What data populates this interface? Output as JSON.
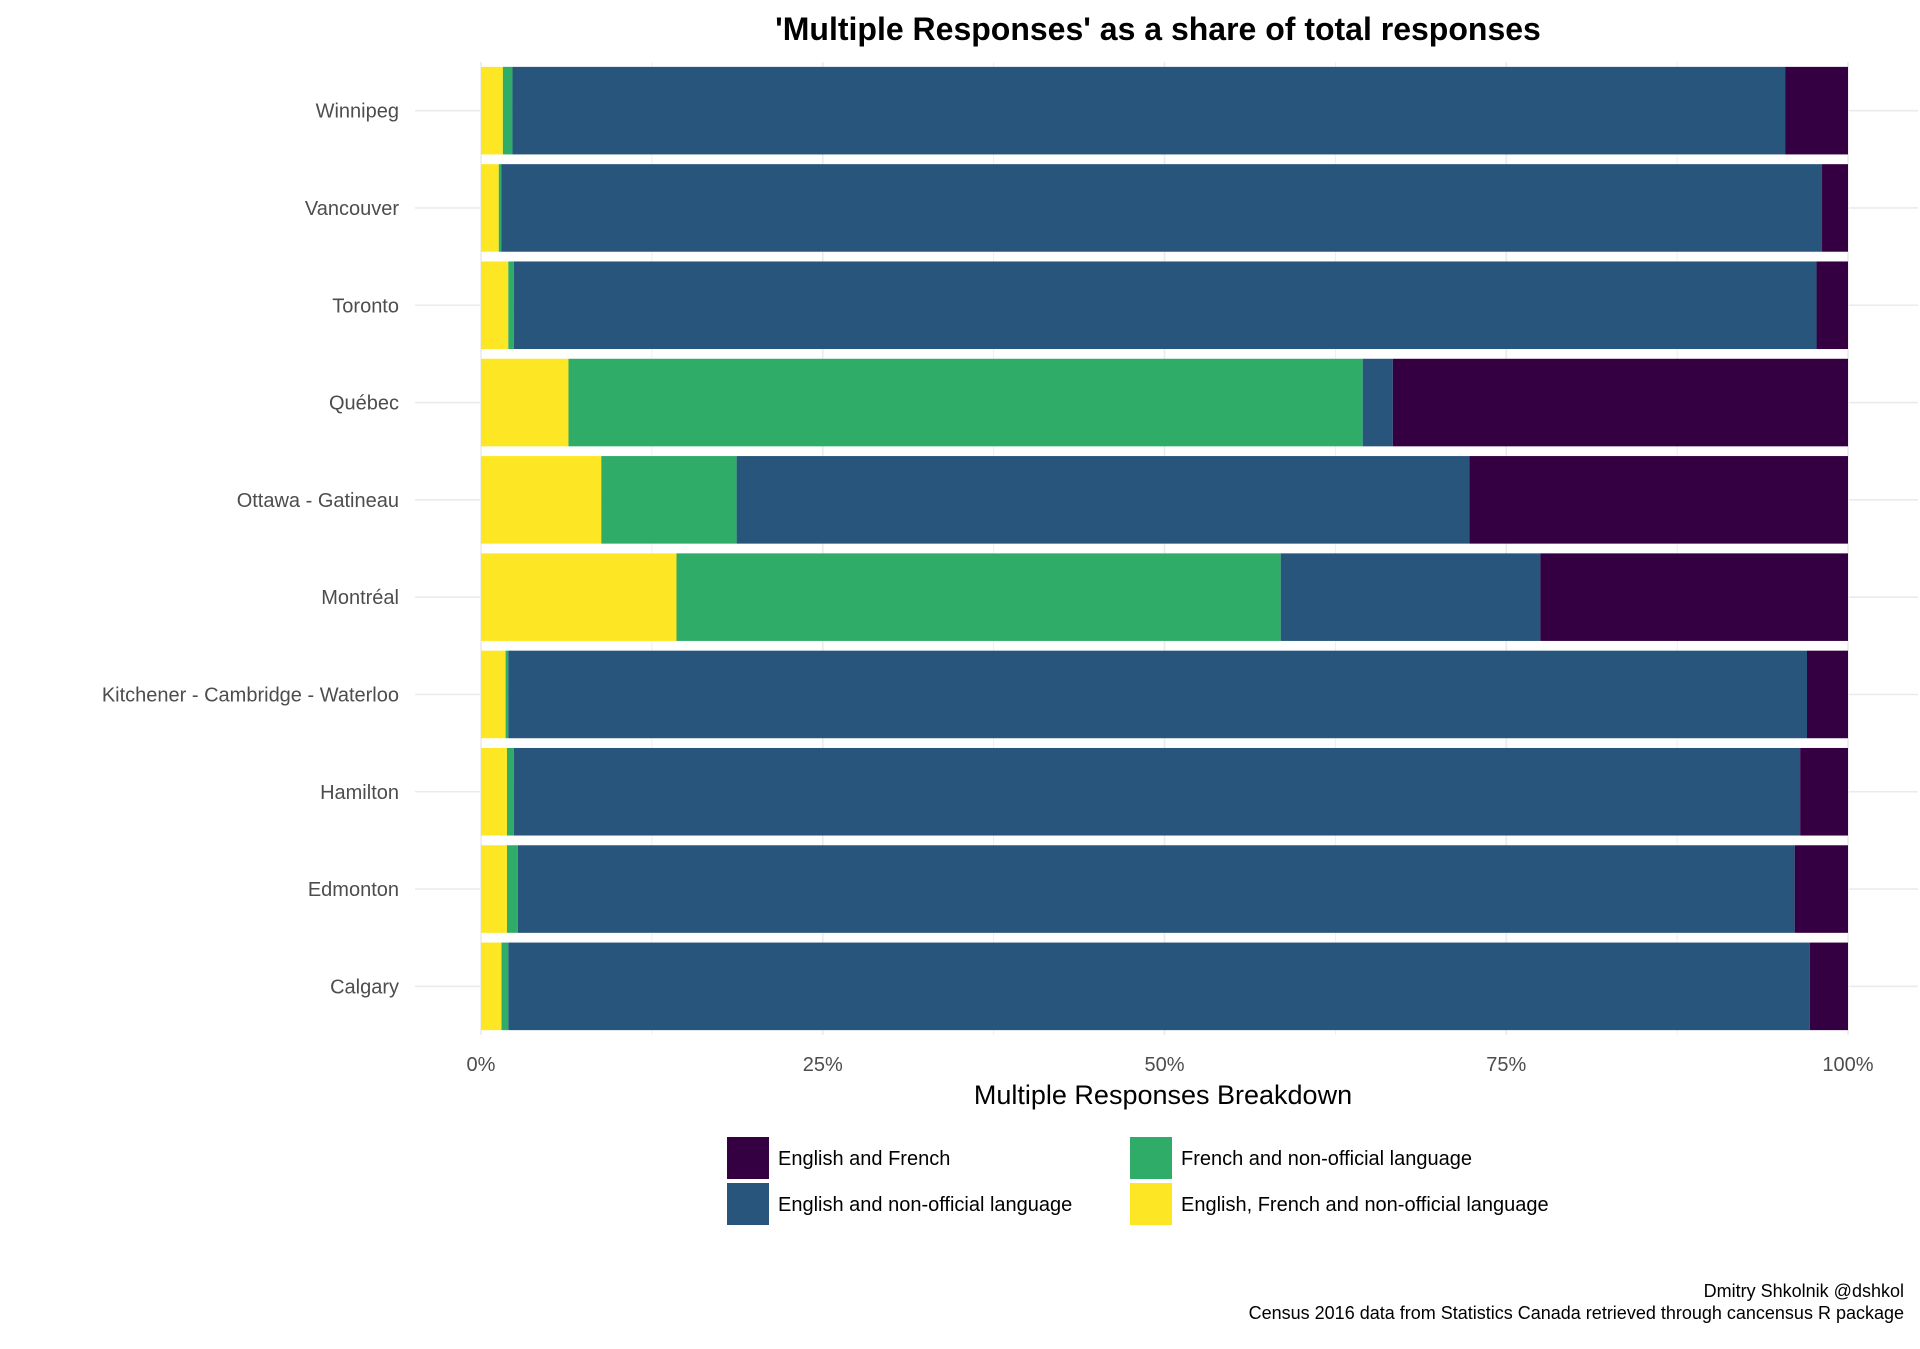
{
  "chart_data": {
    "type": "bar",
    "orientation": "horizontal",
    "stacked": true,
    "title": "'Multiple Responses' as a share of total responses",
    "xlabel": "Multiple Responses Breakdown",
    "ylabel": "",
    "xlim": [
      0,
      1
    ],
    "x_ticks": [
      "0%",
      "25%",
      "50%",
      "75%",
      "100%"
    ],
    "grid": true,
    "legend_position": "bottom",
    "categories": [
      "Winnipeg",
      "Vancouver",
      "Toronto",
      "Québec",
      "Ottawa - Gatineau",
      "Montréal",
      "Kitchener - Cambridge - Waterloo",
      "Hamilton",
      "Edmonton",
      "Calgary"
    ],
    "series": [
      {
        "name": "English, French and non-official language",
        "color": "#FDE725",
        "values": [
          0.016,
          0.013,
          0.02,
          0.064,
          0.088,
          0.143,
          0.018,
          0.019,
          0.019,
          0.015
        ]
      },
      {
        "name": "French and non-official language",
        "color": "#2FAD68",
        "values": [
          0.007,
          0.002,
          0.004,
          0.581,
          0.099,
          0.442,
          0.002,
          0.005,
          0.008,
          0.005
        ]
      },
      {
        "name": "English and non-official language",
        "color": "#27557B",
        "values": [
          0.931,
          0.966,
          0.953,
          0.022,
          0.536,
          0.19,
          0.95,
          0.941,
          0.934,
          0.952
        ]
      },
      {
        "name": "English and French",
        "color": "#350042",
        "values": [
          0.046,
          0.019,
          0.023,
          0.333,
          0.277,
          0.225,
          0.03,
          0.035,
          0.039,
          0.028
        ]
      }
    ],
    "legend_order": [
      "English and French",
      "French and non-official language",
      "English and non-official language",
      "English, French and non-official language"
    ]
  },
  "caption": {
    "line1": "Dmitry Shkolnik @dshkol",
    "line2": "Census 2016 data from Statistics Canada retrieved through cancensus R package"
  }
}
